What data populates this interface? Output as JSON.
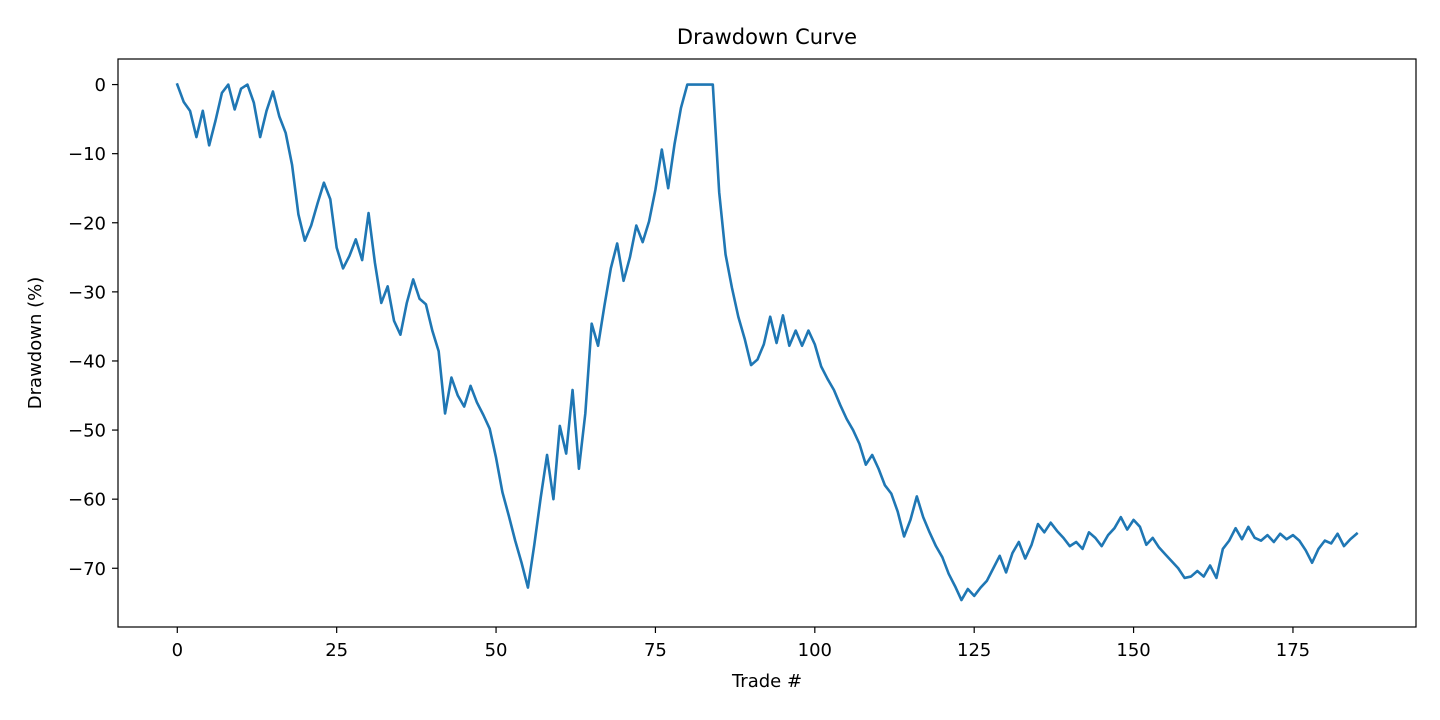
{
  "chart_data": {
    "type": "line",
    "title": "Drawdown Curve",
    "xlabel": "Trade #",
    "ylabel": "Drawdown (%)",
    "xlim": [
      -9.3,
      194.3
    ],
    "ylim": [
      -78.5,
      3.7
    ],
    "xticks": [
      0,
      25,
      50,
      75,
      100,
      125,
      150,
      175
    ],
    "yticks": [
      0,
      -10,
      -20,
      -30,
      -40,
      -50,
      -60,
      -70
    ],
    "xtick_labels": [
      "0",
      "25",
      "50",
      "75",
      "100",
      "125",
      "150",
      "175"
    ],
    "ytick_labels": [
      "0",
      "−10",
      "−20",
      "−30",
      "−40",
      "−50",
      "−60",
      "−70"
    ],
    "grid": false,
    "line_color": "#1f77b4",
    "series": [
      {
        "x": [
          0,
          1,
          2,
          3,
          4,
          5,
          6,
          7,
          8,
          9,
          10,
          11,
          12,
          13,
          14,
          15,
          16,
          17,
          18,
          19,
          20,
          21,
          22,
          23,
          24,
          25,
          26,
          27,
          28,
          29,
          30,
          31,
          32,
          33,
          34,
          35,
          36,
          37,
          38,
          39,
          40,
          41,
          42,
          43,
          44,
          45,
          46,
          47,
          48,
          49,
          50,
          51,
          52,
          53,
          54,
          55,
          56,
          57,
          58,
          59,
          60,
          61,
          62,
          63,
          64,
          65,
          66,
          67,
          68,
          69,
          70,
          71,
          72,
          73,
          74,
          75,
          76,
          77,
          78,
          79,
          80,
          81,
          82,
          83,
          84,
          85,
          86,
          87,
          88,
          89,
          90,
          91,
          92,
          93,
          94,
          95,
          96,
          97,
          98,
          99,
          100,
          101,
          102,
          103,
          104,
          105,
          106,
          107,
          108,
          109,
          110,
          111,
          112,
          113,
          114,
          115,
          116,
          117,
          118,
          119,
          120,
          121,
          122,
          123,
          124,
          125,
          126,
          127,
          128,
          129,
          130,
          131,
          132,
          133,
          134,
          135,
          136,
          137,
          138,
          139,
          140,
          141,
          142,
          143,
          144,
          145,
          146,
          147,
          148,
          149,
          150,
          151,
          152,
          153,
          154,
          155,
          156,
          157,
          158,
          159,
          160,
          161,
          162,
          163,
          164,
          165,
          166,
          167,
          168,
          169,
          170,
          171,
          172,
          173,
          174,
          175,
          176,
          177,
          178,
          179,
          180,
          181,
          182,
          183,
          184,
          185
        ],
        "values": [
          0,
          -2.5,
          -3.8,
          -7.6,
          -3.8,
          -8.8,
          -5.2,
          -1.2,
          0,
          -3.6,
          -0.6,
          0,
          -2.6,
          -7.6,
          -3.8,
          -1,
          -4.6,
          -7,
          -11.6,
          -18.8,
          -22.6,
          -20.4,
          -17.2,
          -14.2,
          -16.6,
          -23.6,
          -26.6,
          -24.8,
          -22.4,
          -25.4,
          -18.6,
          -25.8,
          -31.6,
          -29.2,
          -34.2,
          -36.2,
          -31.6,
          -28.2,
          -31.0,
          -31.8,
          -35.6,
          -38.6,
          -47.6,
          -42.4,
          -45.0,
          -46.6,
          -43.6,
          -46.0,
          -47.8,
          -49.8,
          -54.0,
          -59.0,
          -62.4,
          -66.0,
          -69.2,
          -72.8,
          -66.6,
          -59.8,
          -53.6,
          -60.0,
          -49.4,
          -53.4,
          -44.2,
          -55.6,
          -47.6,
          -34.6,
          -37.8,
          -32.0,
          -26.6,
          -23.0,
          -28.4,
          -25.0,
          -20.4,
          -22.8,
          -19.8,
          -15.2,
          -9.4,
          -15.0,
          -8.6,
          -3.4,
          0,
          0,
          0,
          0,
          0,
          -15.6,
          -24.6,
          -29.4,
          -33.6,
          -36.8,
          -40.6,
          -39.8,
          -37.6,
          -33.6,
          -37.4,
          -33.4,
          -37.8,
          -35.6,
          -37.8,
          -35.6,
          -37.6,
          -40.8,
          -42.6,
          -44.2,
          -46.4,
          -48.4,
          -50.0,
          -52.0,
          -55.0,
          -53.6,
          -55.6,
          -58.0,
          -59.2,
          -61.8,
          -65.4,
          -63.0,
          -59.6,
          -62.6,
          -64.8,
          -66.8,
          -68.4,
          -70.8,
          -72.6,
          -74.6,
          -73.0,
          -74.0,
          -72.8,
          -71.8,
          -70.0,
          -68.2,
          -70.6,
          -67.8,
          -66.2,
          -68.6,
          -66.6,
          -63.6,
          -64.8,
          -63.4,
          -64.6,
          -65.6,
          -66.8,
          -66.2,
          -67.2,
          -64.8,
          -65.6,
          -66.8,
          -65.2,
          -64.2,
          -62.6,
          -64.4,
          -63.0,
          -64.0,
          -66.6,
          -65.6,
          -67.0,
          -68.0,
          -69.0,
          -70.0,
          -71.4,
          -71.2,
          -70.4,
          -71.2,
          -69.6,
          -71.4,
          -67.2,
          -66.0,
          -64.2,
          -65.8,
          -64.0,
          -65.6,
          -66.0,
          -65.2,
          -66.2,
          -65.0,
          -65.8,
          -65.2,
          -66.0,
          -67.4,
          -69.2,
          -67.2,
          -66.0,
          -66.4,
          -65.0,
          -66.8,
          -65.8,
          -65.0
        ]
      }
    ]
  }
}
